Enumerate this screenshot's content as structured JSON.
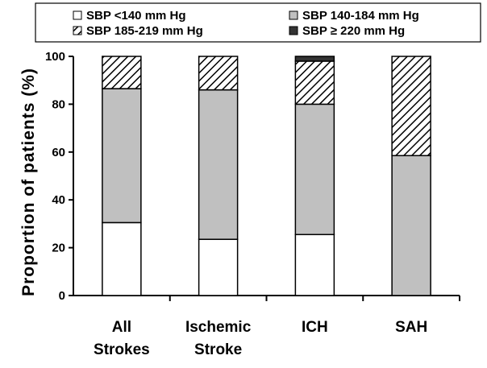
{
  "chart_data": {
    "type": "bar",
    "stacked": true,
    "categories": [
      [
        "All",
        "Strokes"
      ],
      [
        "Ischemic",
        "Stroke"
      ],
      [
        "ICH"
      ],
      [
        "SAH"
      ]
    ],
    "series": [
      {
        "name": "SBP <140 mm Hg",
        "fill": "white",
        "values": [
          30.5,
          23.5,
          25.5,
          0
        ]
      },
      {
        "name": "SBP 140-184 mm Hg",
        "fill": "gray",
        "values": [
          56,
          62.5,
          54.5,
          58.5
        ]
      },
      {
        "name": "SBP 185-219 mm Hg",
        "fill": "hatch",
        "values": [
          13.5,
          14,
          18,
          41.5
        ]
      },
      {
        "name": "SBP ≥ 220 mm Hg",
        "fill": "dark",
        "values": [
          0,
          0,
          2,
          0
        ]
      }
    ],
    "legend": {
      "placement": "top",
      "labels": [
        "SBP <140 mm Hg",
        "SBP 140-184 mm Hg",
        "SBP 185-219 mm Hg",
        "SBP ≥ 220 mm Hg"
      ]
    },
    "ylabel": "Proportion of patients (%)",
    "xlabel": "",
    "ylim": [
      0,
      100
    ],
    "yticks": [
      0,
      20,
      40,
      60,
      80,
      100
    ],
    "ytick_labels": [
      "0",
      "20",
      "40",
      "60",
      "80",
      "100"
    ],
    "colors": {
      "white": "#ffffff",
      "gray": "#c0c0c0",
      "dark": "#333333",
      "stroke": "#000000"
    }
  }
}
